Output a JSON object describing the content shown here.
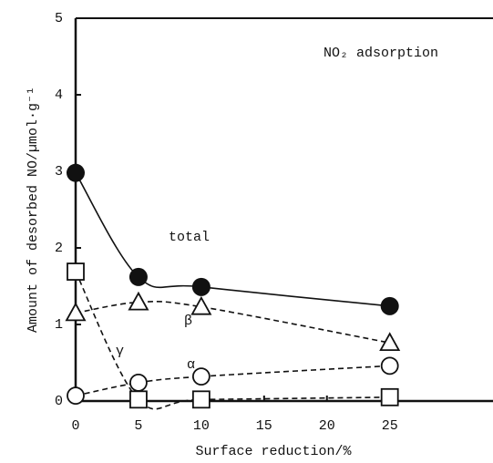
{
  "chart_data": {
    "type": "line",
    "annotation": "NO₂ adsorption",
    "xlabel": "Surface reduction/%",
    "ylabel": "Amount of desorbed NO/µmol·g⁻¹",
    "x": [
      0,
      5,
      10,
      25
    ],
    "series": [
      {
        "name": "total",
        "color": "#111111",
        "marker": "filled-circle",
        "line_style": "solid",
        "values": [
          2.98,
          1.62,
          1.49,
          1.24
        ]
      },
      {
        "name": "β",
        "color": "#111111",
        "marker": "triangle",
        "line_style": "dashed",
        "values": [
          1.15,
          1.29,
          1.23,
          0.76
        ]
      },
      {
        "name": "α",
        "color": "#111111",
        "marker": "circle",
        "line_style": "dashed",
        "values": [
          0.07,
          0.24,
          0.32,
          0.46
        ]
      },
      {
        "name": "γ",
        "color": "#111111",
        "marker": "square",
        "line_style": "dashed",
        "values": [
          1.69,
          0.02,
          0.02,
          0.05
        ]
      }
    ],
    "xlim": [
      0,
      33
    ],
    "xticks": [
      0,
      5,
      10,
      15,
      20,
      25
    ],
    "ylim": [
      0,
      5
    ],
    "yticks": [
      0,
      1,
      2,
      3,
      4,
      5
    ]
  }
}
